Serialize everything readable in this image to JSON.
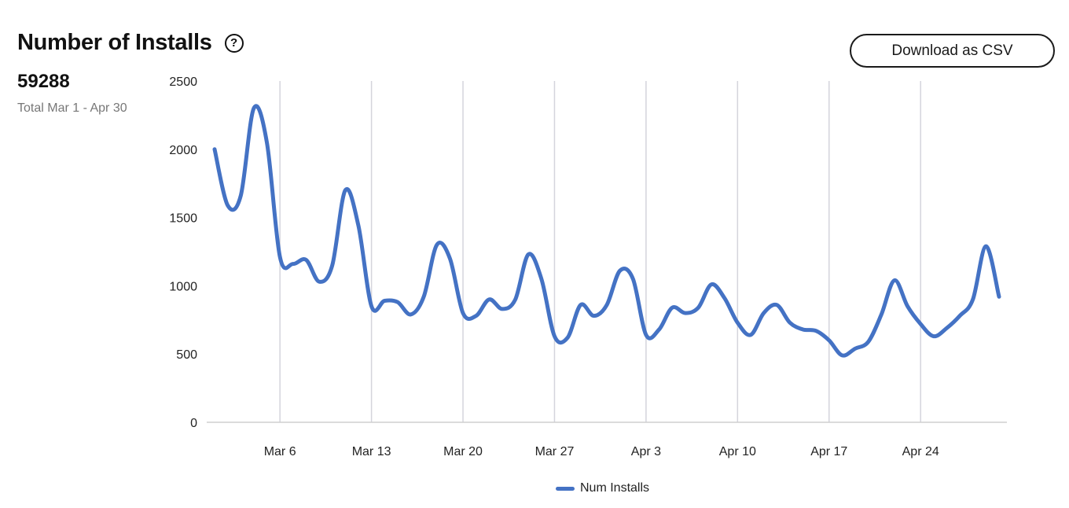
{
  "header": {
    "title": "Number of Installs",
    "help_icon": "question-circle-icon",
    "download_label": "Download as CSV"
  },
  "summary": {
    "total": "59288",
    "caption": "Total Mar 1 - Apr 30"
  },
  "colors": {
    "series": "#4472c4",
    "grid": "#d4d4dc",
    "axis": "#cfcfcf"
  },
  "chart_data": {
    "type": "line",
    "x_tick_labels": [
      "Mar 6",
      "Mar 13",
      "Mar 20",
      "Mar 27",
      "Apr 3",
      "Apr 10",
      "Apr 17",
      "Apr 24"
    ],
    "x_tick_dates": [
      "2023-03-06",
      "2023-03-13",
      "2023-03-20",
      "2023-03-27",
      "2023-04-03",
      "2023-04-10",
      "2023-04-17",
      "2023-04-24"
    ],
    "ylim": [
      0,
      2500
    ],
    "y_ticks": [
      0,
      500,
      1000,
      1500,
      2000,
      2500
    ],
    "grid": "vertical",
    "legend_position": "bottom",
    "series": [
      {
        "name": "Num Installs",
        "x": [
          "2023-03-01",
          "2023-03-02",
          "2023-03-03",
          "2023-03-04",
          "2023-03-05",
          "2023-03-06",
          "2023-03-07",
          "2023-03-08",
          "2023-03-09",
          "2023-03-10",
          "2023-03-11",
          "2023-03-12",
          "2023-03-13",
          "2023-03-14",
          "2023-03-15",
          "2023-03-16",
          "2023-03-17",
          "2023-03-18",
          "2023-03-19",
          "2023-03-20",
          "2023-03-21",
          "2023-03-22",
          "2023-03-23",
          "2023-03-24",
          "2023-03-25",
          "2023-03-26",
          "2023-03-27",
          "2023-03-28",
          "2023-03-29",
          "2023-03-30",
          "2023-03-31",
          "2023-04-01",
          "2023-04-02",
          "2023-04-03",
          "2023-04-04",
          "2023-04-05",
          "2023-04-06",
          "2023-04-07",
          "2023-04-08",
          "2023-04-09",
          "2023-04-10",
          "2023-04-11",
          "2023-04-12",
          "2023-04-13",
          "2023-04-14",
          "2023-04-15",
          "2023-04-16",
          "2023-04-17",
          "2023-04-18",
          "2023-04-19",
          "2023-04-20",
          "2023-04-21",
          "2023-04-22",
          "2023-04-23",
          "2023-04-24",
          "2023-04-25",
          "2023-04-26",
          "2023-04-27",
          "2023-04-28",
          "2023-04-29",
          "2023-04-30"
        ],
        "values": [
          2000,
          1590,
          1660,
          2300,
          2050,
          1210,
          1160,
          1190,
          1030,
          1150,
          1700,
          1440,
          850,
          890,
          880,
          790,
          920,
          1300,
          1200,
          800,
          780,
          900,
          830,
          900,
          1230,
          1050,
          630,
          620,
          860,
          780,
          860,
          1110,
          1050,
          640,
          680,
          840,
          800,
          840,
          1010,
          910,
          730,
          640,
          800,
          860,
          730,
          680,
          670,
          600,
          490,
          540,
          590,
          790,
          1040,
          850,
          720,
          630,
          690,
          780,
          900,
          1290,
          920
        ]
      }
    ]
  }
}
